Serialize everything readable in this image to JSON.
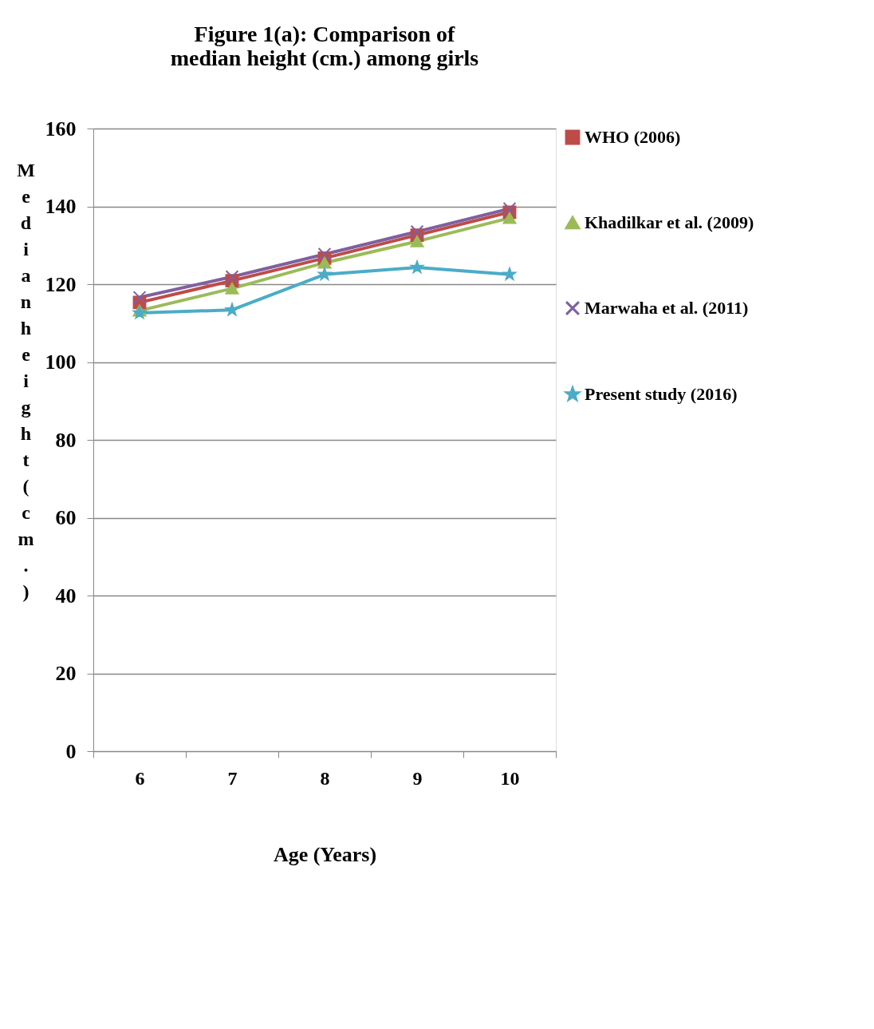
{
  "chart_data": {
    "type": "line",
    "title": "Figure 1(a): Comparison of median height (cm.) among girls",
    "xlabel": "Age (Years)",
    "ylabel": "Median height (cm.)",
    "categories": [
      "6",
      "7",
      "8",
      "9",
      "10"
    ],
    "series": [
      {
        "name": "WHO (2006)",
        "color": "#be4b48",
        "marker": "square",
        "values": [
          115.3,
          120.9,
          126.7,
          132.6,
          138.5
        ]
      },
      {
        "name": "Khadilkar et al. (2009)",
        "color": "#9bbb59",
        "marker": "triangle",
        "values": [
          113.2,
          118.9,
          125.5,
          131,
          137
        ]
      },
      {
        "name": "Marwaha et al. (2011)",
        "color": "#7f60a0",
        "marker": "cross",
        "values": [
          116.6,
          121.9,
          127.7,
          133.5,
          139.4
        ]
      },
      {
        "name": "Present study (2016)",
        "color": "#4bacc6",
        "marker": "star",
        "values": [
          112.6,
          113.4,
          122.5,
          124.3,
          122.5
        ]
      }
    ],
    "ylim": [
      0,
      160
    ],
    "yticks": [
      0,
      20,
      40,
      60,
      80,
      100,
      120,
      140,
      160
    ],
    "grid": "y",
    "legend": "right"
  }
}
